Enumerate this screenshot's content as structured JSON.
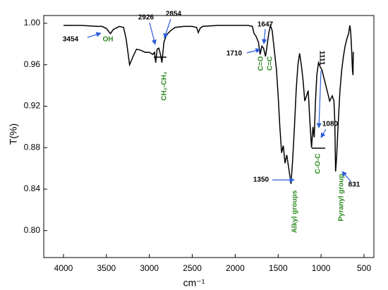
{
  "chart_data": {
    "type": "line",
    "xlabel": "cm⁻¹",
    "ylabel": "T(%)",
    "x": [
      4000,
      3800,
      3600,
      3550,
      3500,
      3454,
      3420,
      3350,
      3300,
      3270,
      3230,
      3190,
      3150,
      3100,
      3050,
      3000,
      2960,
      2940,
      2926,
      2910,
      2890,
      2870,
      2854,
      2830,
      2800,
      2750,
      2700,
      2600,
      2500,
      2450,
      2430,
      2410,
      2380,
      2200,
      2000,
      1850,
      1800,
      1780,
      1760,
      1730,
      1710,
      1690,
      1670,
      1647,
      1630,
      1610,
      1590,
      1570,
      1550,
      1520,
      1500,
      1480,
      1460,
      1440,
      1420,
      1400,
      1380,
      1350,
      1330,
      1310,
      1290,
      1270,
      1250,
      1230,
      1210,
      1190,
      1170,
      1150,
      1130,
      1111,
      1095,
      1080,
      1065,
      1050,
      1030,
      1010,
      990,
      960,
      930,
      900,
      870,
      850,
      840,
      831,
      820,
      800,
      780,
      760,
      740,
      720,
      700,
      680,
      665,
      655,
      645,
      635,
      628,
      625,
      620
    ],
    "values": [
      0.998,
      0.998,
      0.997,
      0.997,
      0.995,
      0.99,
      0.994,
      0.997,
      0.996,
      0.985,
      0.96,
      0.968,
      0.975,
      0.974,
      0.972,
      0.972,
      0.97,
      0.972,
      0.962,
      0.975,
      0.976,
      0.97,
      0.962,
      0.982,
      0.989,
      0.993,
      0.996,
      0.997,
      0.997,
      0.996,
      0.991,
      0.995,
      0.997,
      0.998,
      0.998,
      0.998,
      0.997,
      0.99,
      0.988,
      0.982,
      0.97,
      0.978,
      0.976,
      0.968,
      0.978,
      0.99,
      0.998,
      0.993,
      0.978,
      0.955,
      0.93,
      0.9,
      0.875,
      0.882,
      0.865,
      0.873,
      0.862,
      0.845,
      0.87,
      0.9,
      0.935,
      0.96,
      0.971,
      0.96,
      0.945,
      0.925,
      0.93,
      0.935,
      0.905,
      0.88,
      0.9,
      0.89,
      0.925,
      0.95,
      0.962,
      0.958,
      0.955,
      0.945,
      0.935,
      0.925,
      0.93,
      0.925,
      0.905,
      0.857,
      0.87,
      0.905,
      0.935,
      0.955,
      0.968,
      0.978,
      0.985,
      0.99,
      0.998,
      0.992,
      0.975,
      0.955,
      0.95,
      0.972,
      0.972
    ],
    "color": "#000000",
    "xlim": [
      4230,
      385
    ],
    "xticks": [
      4000,
      3500,
      3000,
      2500,
      2000,
      1500,
      1000,
      500
    ],
    "ylim": [
      0.774,
      1.0075
    ],
    "yticks": [
      {
        "value": 0.8,
        "label": "0.80"
      },
      0.84,
      0.88,
      0.92,
      0.96,
      {
        "value": 1,
        "label": "1.00"
      }
    ],
    "annotations": [
      "3454",
      "OH",
      "2926",
      "2854",
      "CH₂-CH₃",
      "1647",
      "1710",
      "C=O",
      "C=C",
      "1111",
      "1080",
      "C-O-C",
      "1350",
      "Alkyl groups",
      "Pyranyl group",
      "831"
    ]
  }
}
